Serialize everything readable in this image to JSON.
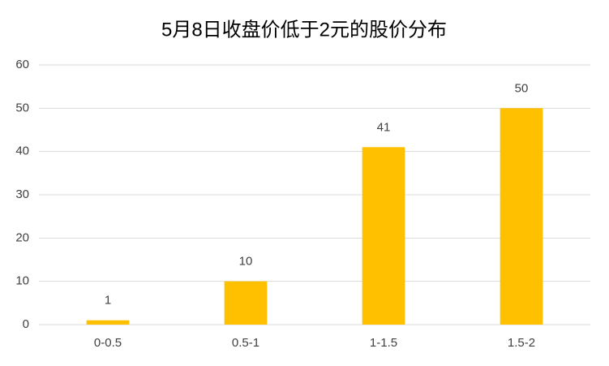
{
  "chart_data": {
    "type": "bar",
    "title": "5月8日收盘价低于2元的股价分布",
    "categories": [
      "0-0.5",
      "0.5-1",
      "1-1.5",
      "1.5-2"
    ],
    "values": [
      1,
      10,
      41,
      50
    ],
    "color": "#ffc000",
    "ylim": [
      0,
      60
    ],
    "yticks": [
      0,
      10,
      20,
      30,
      40,
      50,
      60
    ],
    "grid": true,
    "data_labels": true
  }
}
